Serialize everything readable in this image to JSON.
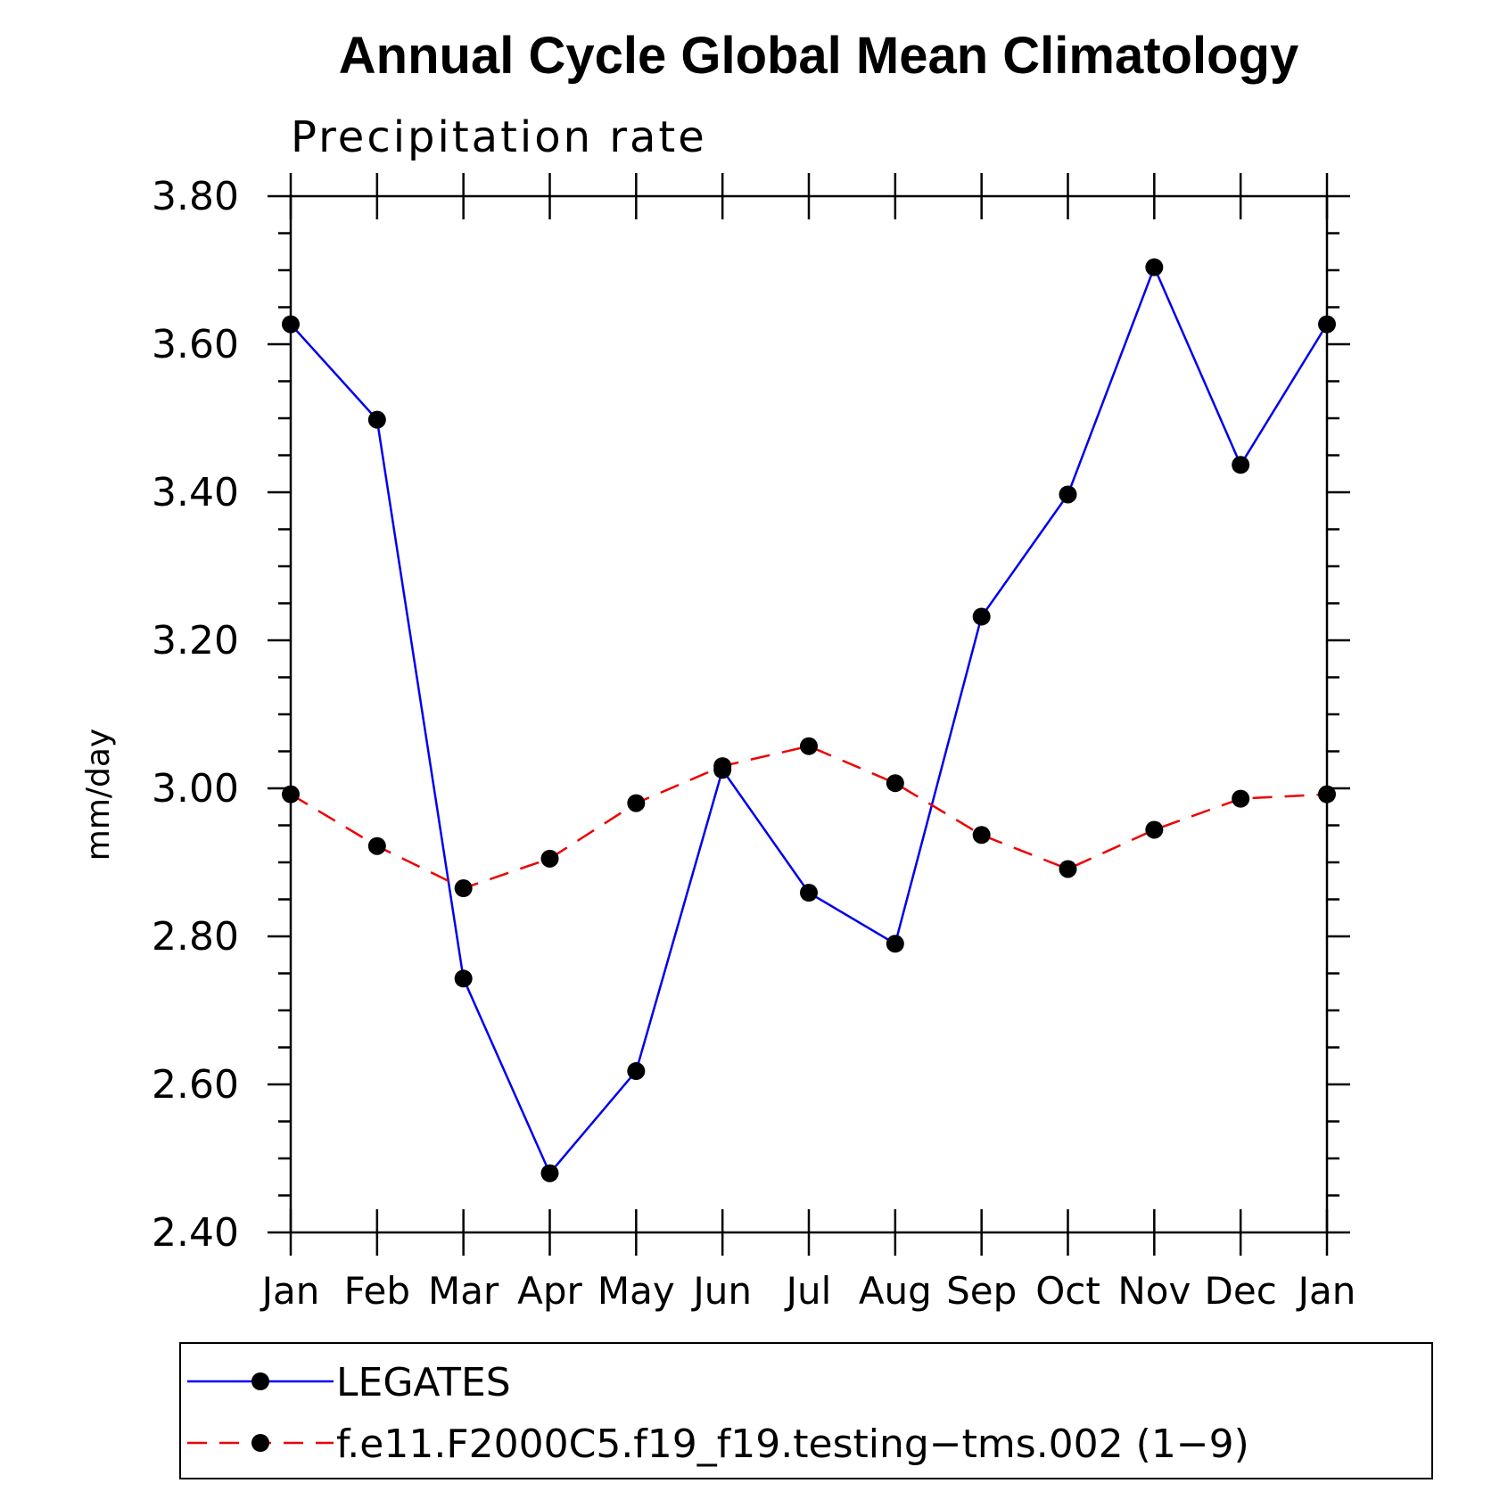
{
  "chart_data": {
    "type": "line",
    "title": "Annual Cycle Global Mean Climatology",
    "subtitle": "Precipitation rate",
    "xlabel": "",
    "ylabel": "mm/day",
    "categories": [
      "Jan",
      "Feb",
      "Mar",
      "Apr",
      "May",
      "Jun",
      "Jul",
      "Aug",
      "Sep",
      "Oct",
      "Nov",
      "Dec",
      "Jan"
    ],
    "ylim": [
      2.4,
      3.8
    ],
    "yticks": [
      "2.40",
      "2.60",
      "2.80",
      "3.00",
      "3.20",
      "3.40",
      "3.60",
      "3.80"
    ],
    "series": [
      {
        "name": "LEGATES",
        "color": "#0000ee",
        "dash": "solid",
        "values": [
          3.627,
          3.498,
          2.743,
          2.48,
          2.618,
          3.025,
          2.859,
          2.79,
          3.232,
          3.397,
          3.704,
          3.437,
          3.627
        ]
      },
      {
        "name": "f.e11.F2000C5.f19_f19.testing−tms.002 (1−9)",
        "color": "#ee0000",
        "dash": "dashed",
        "values": [
          2.992,
          2.922,
          2.865,
          2.905,
          2.98,
          3.03,
          3.057,
          3.007,
          2.937,
          2.891,
          2.944,
          2.986,
          2.992
        ]
      }
    ],
    "legend_position": "bottom",
    "grid": false
  }
}
